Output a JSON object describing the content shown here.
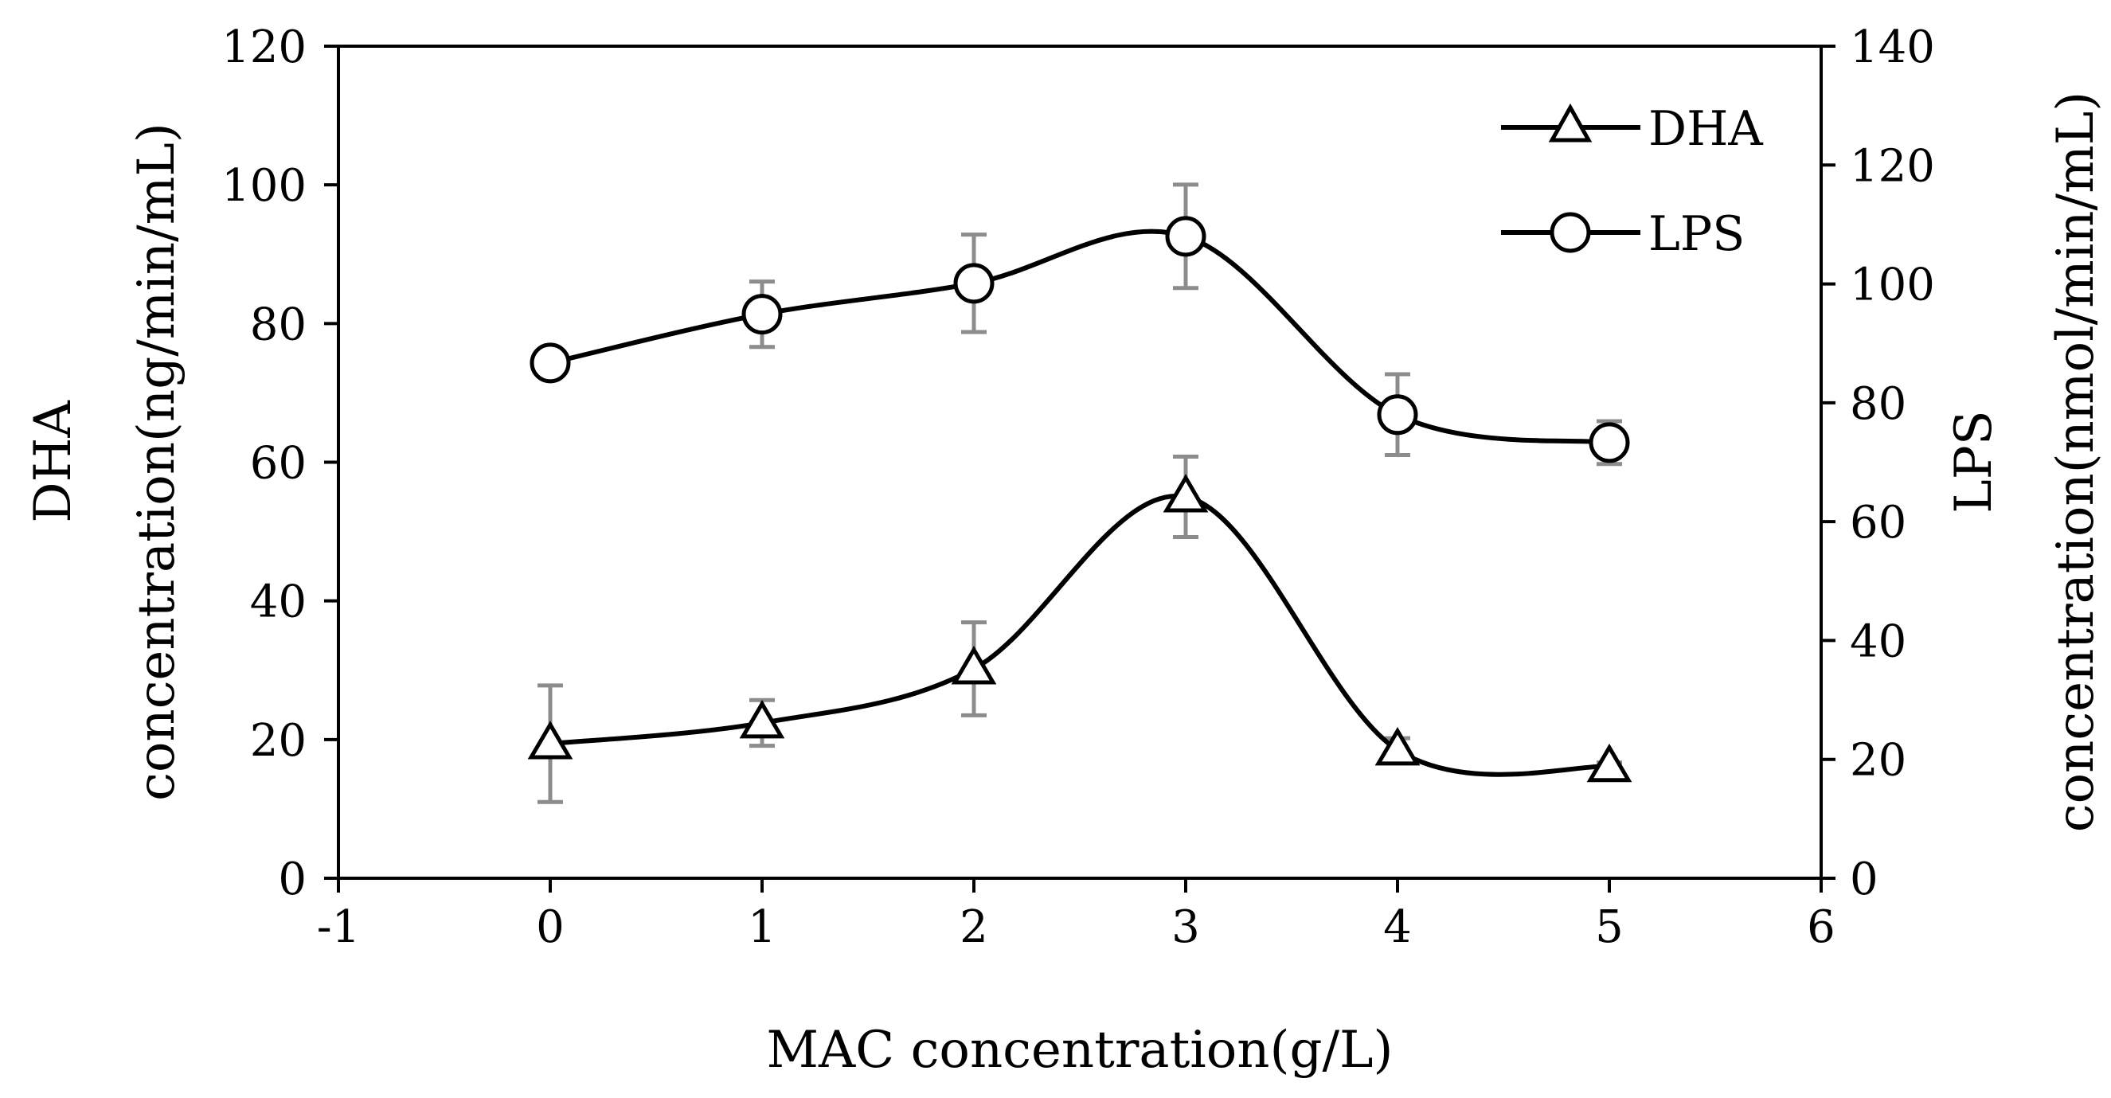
{
  "chart_data": {
    "type": "line",
    "title": "",
    "xlabel": "MAC concentration(g/L)",
    "ylabel_left_line1": "DHA",
    "ylabel_left_line2": "concentration(ng/min/mL)",
    "ylabel_right_line1": "LPS",
    "ylabel_right_line2": "concentration(nmol/min/mL)",
    "xlim": [
      -1,
      6
    ],
    "ylim_left": [
      0,
      120
    ],
    "ylim_right": [
      0,
      140
    ],
    "x_ticks": [
      -1,
      0,
      1,
      2,
      3,
      4,
      5,
      6
    ],
    "y_left_ticks": [
      0,
      20,
      40,
      60,
      80,
      100,
      120
    ],
    "y_right_ticks": [
      0,
      20,
      40,
      60,
      80,
      100,
      120,
      140
    ],
    "grid": false,
    "legend_position": "top-right",
    "colors": {
      "line": "#000000",
      "error_bar": "#8c8c8c",
      "background": "#ffffff"
    },
    "series": [
      {
        "name": "DHA",
        "axis": "left",
        "marker": "triangle",
        "x": [
          0,
          1,
          2,
          3,
          4,
          5
        ],
        "values": [
          19.4,
          22.4,
          30.2,
          55.0,
          18.5,
          16.1
        ],
        "errors": [
          8.4,
          3.3,
          6.7,
          5.8,
          1.7,
          0.6
        ]
      },
      {
        "name": "LPS",
        "axis": "right",
        "marker": "circle",
        "x": [
          0,
          1,
          2,
          3,
          4,
          5
        ],
        "values": [
          86.7,
          94.9,
          100.1,
          108.0,
          78.0,
          73.3
        ],
        "errors": [
          1.2,
          5.5,
          8.2,
          8.7,
          6.8,
          3.6
        ]
      }
    ]
  }
}
